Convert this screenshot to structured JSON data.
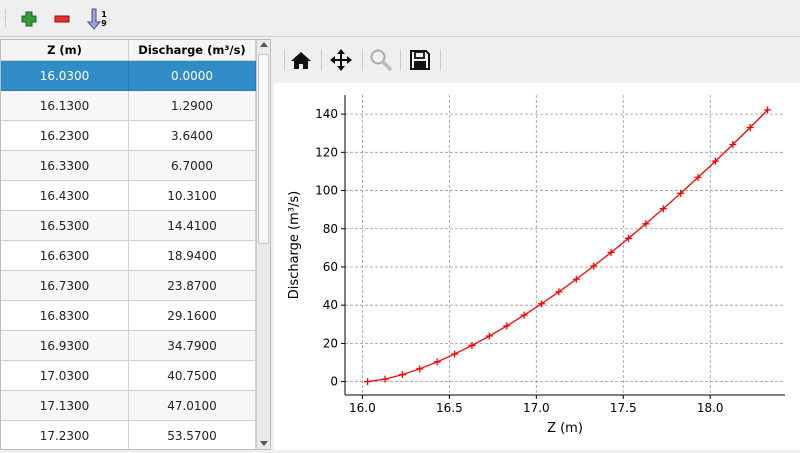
{
  "toolbar": {
    "icons": [
      "add-row-icon",
      "remove-row-icon",
      "sort-icon"
    ],
    "sort_digits": [
      "1",
      "9"
    ]
  },
  "table": {
    "columns": [
      "Z (m)",
      "Discharge (m³/s)"
    ],
    "rows": [
      [
        "16.0300",
        "0.0000"
      ],
      [
        "16.1300",
        "1.2900"
      ],
      [
        "16.2300",
        "3.6400"
      ],
      [
        "16.3300",
        "6.7000"
      ],
      [
        "16.4300",
        "10.3100"
      ],
      [
        "16.5300",
        "14.4100"
      ],
      [
        "16.6300",
        "18.9400"
      ],
      [
        "16.7300",
        "23.8700"
      ],
      [
        "16.8300",
        "29.1600"
      ],
      [
        "16.9300",
        "34.7900"
      ],
      [
        "17.0300",
        "40.7500"
      ],
      [
        "17.1300",
        "47.0100"
      ],
      [
        "17.2300",
        "53.5700"
      ]
    ],
    "selected_row": 0,
    "selection_color": "#308cc6"
  },
  "plot_toolbar": {
    "icons": [
      "home-icon",
      "pan-icon",
      "zoom-icon",
      "save-icon"
    ]
  },
  "chart_data": {
    "type": "line",
    "xlabel": "Z (m)",
    "ylabel": "Discharge (m³/s)",
    "xlim": [
      15.9,
      18.43
    ],
    "ylim": [
      -7,
      150
    ],
    "xticks": [
      16.0,
      16.5,
      17.0,
      17.5,
      18.0
    ],
    "xtick_labels": [
      "16.0",
      "16.5",
      "17.0",
      "17.5",
      "18.0"
    ],
    "yticks": [
      0,
      20,
      40,
      60,
      80,
      100,
      120,
      140
    ],
    "ytick_labels": [
      "0",
      "20",
      "40",
      "60",
      "80",
      "100",
      "120",
      "140"
    ],
    "grid": true,
    "color": "#ff0000",
    "marker": "+",
    "x": [
      16.03,
      16.13,
      16.23,
      16.33,
      16.43,
      16.53,
      16.63,
      16.73,
      16.83,
      16.93,
      17.03,
      17.13,
      17.23,
      17.33,
      17.43,
      17.53,
      17.63,
      17.73,
      17.83,
      17.93,
      18.03,
      18.13,
      18.23,
      18.33
    ],
    "y": [
      0,
      1.29,
      3.64,
      6.7,
      10.31,
      14.41,
      18.94,
      23.87,
      29.16,
      34.79,
      40.75,
      47.01,
      53.57,
      60.5,
      67.6,
      75.0,
      82.6,
      90.5,
      98.6,
      106.9,
      115.4,
      124.1,
      133.0,
      142.2
    ]
  }
}
